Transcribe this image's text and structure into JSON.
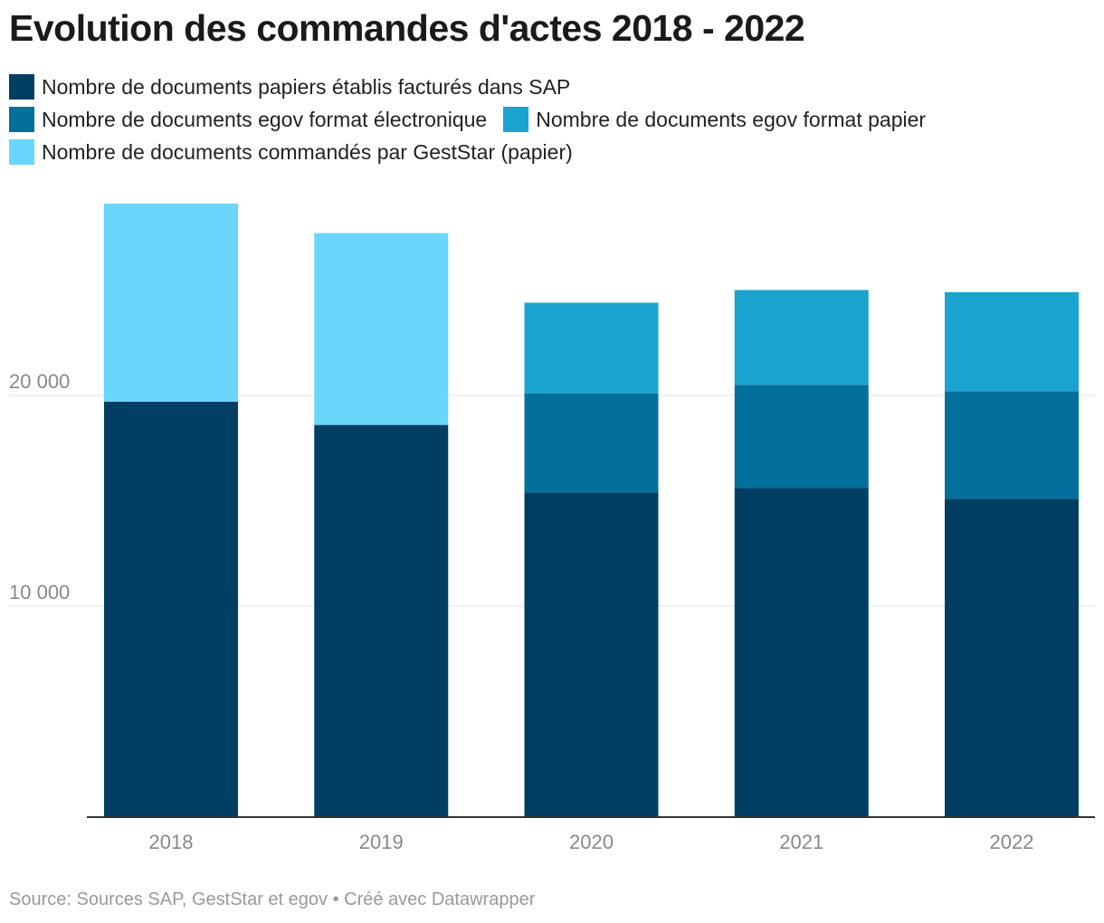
{
  "title": "Evolution des commandes d'actes 2018 - 2022",
  "footer": "Source: Sources SAP, GestStar et egov • Créé avec Datawrapper",
  "legend": [
    {
      "label": "Nombre de documents papiers établis facturés dans SAP",
      "color": "#003f63"
    },
    {
      "label": "Nombre de documents egov format électronique",
      "color": "#036f9b"
    },
    {
      "label": "Nombre de documents egov format papier",
      "color": "#1aa3cf"
    },
    {
      "label": "Nombre de documents commandés par GestStar (papier)",
      "color": "#69d6fb"
    }
  ],
  "chart_data": {
    "type": "bar",
    "stacked": true,
    "categories": [
      "2018",
      "2019",
      "2020",
      "2021",
      "2022"
    ],
    "series": [
      {
        "name": "Nombre de documents papiers établis facturés dans SAP",
        "color": "#003f63",
        "values": [
          19700,
          18600,
          15400,
          15600,
          15100
        ]
      },
      {
        "name": "Nombre de documents egov format électronique",
        "color": "#036f9b",
        "values": [
          0,
          0,
          4700,
          4900,
          5100
        ]
      },
      {
        "name": "Nombre de documents egov format papier",
        "color": "#1aa3cf",
        "values": [
          0,
          0,
          4300,
          4500,
          4700
        ]
      },
      {
        "name": "Nombre de documents commandés par GestStar (papier)",
        "color": "#69d6fb",
        "values": [
          9400,
          9100,
          0,
          0,
          0
        ]
      }
    ],
    "yticks": [
      {
        "value": 10000,
        "label": "10 000"
      },
      {
        "value": 20000,
        "label": "20 000"
      }
    ],
    "ylim": [
      0,
      30000
    ],
    "grid": true
  }
}
